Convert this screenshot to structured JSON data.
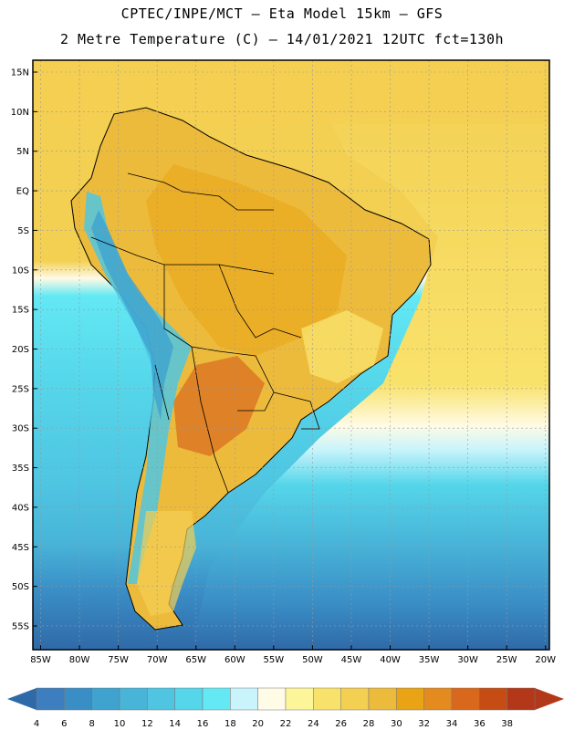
{
  "title": {
    "line1": "CPTEC/INPE/MCT –  Eta Model 15km – GFS",
    "line2": "2 Metre Temperature (C) – 14/01/2021 12UTC fct=130h"
  },
  "map": {
    "lat_labels": [
      "15N",
      "10N",
      "5N",
      "EQ",
      "5S",
      "10S",
      "15S",
      "20S",
      "25S",
      "30S",
      "35S",
      "40S",
      "45S",
      "50S",
      "55S"
    ],
    "lon_labels": [
      "85W",
      "80W",
      "75W",
      "70W",
      "65W",
      "60W",
      "55W",
      "50W",
      "45W",
      "40W",
      "35W",
      "30W",
      "25W",
      "20W"
    ],
    "lat_values": [
      15,
      10,
      5,
      0,
      -5,
      -10,
      -15,
      -20,
      -25,
      -30,
      -35,
      -40,
      -45,
      -50,
      -55
    ],
    "lon_values": [
      -85,
      -80,
      -75,
      -70,
      -65,
      -60,
      -55,
      -50,
      -45,
      -40,
      -35,
      -30,
      -25,
      -20
    ],
    "lat_range": [
      -58,
      16.5
    ],
    "lon_range": [
      -86,
      -19.5
    ]
  },
  "colorbar": {
    "labels": [
      "4",
      "6",
      "8",
      "10",
      "12",
      "14",
      "16",
      "18",
      "20",
      "22",
      "24",
      "26",
      "28",
      "30",
      "32",
      "34",
      "36",
      "38"
    ],
    "colors": [
      "#3d7fbe",
      "#3a8ec6",
      "#3fa2cf",
      "#48b4d8",
      "#4fc5e2",
      "#55d6ea",
      "#63e8f4",
      "#c9f4fb",
      "#fffbe6",
      "#fdf59a",
      "#f9e26b",
      "#f3cf52",
      "#edbb3c",
      "#e9a415",
      "#e48b20",
      "#d9681c",
      "#c54c12",
      "#b3381a"
    ],
    "below_color": "#2f6aa8",
    "above_color": "#b3381a"
  }
}
